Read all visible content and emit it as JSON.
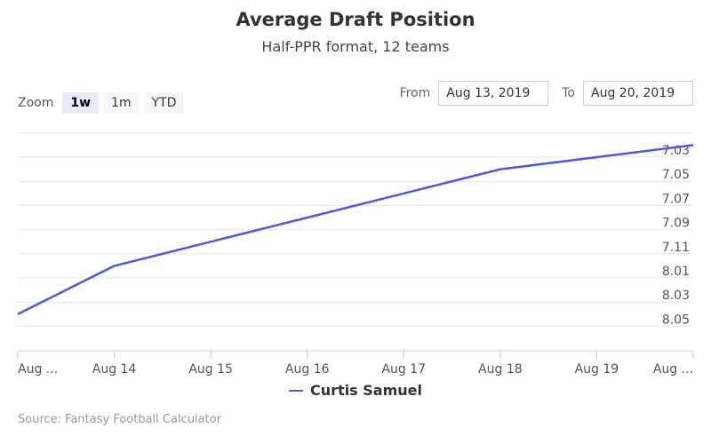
{
  "header": {
    "title": "Average Draft Position",
    "subtitle": "Half-PPR format, 12 teams"
  },
  "zoom": {
    "label": "Zoom",
    "buttons": [
      {
        "label": "1w",
        "active": true
      },
      {
        "label": "1m",
        "active": false
      },
      {
        "label": "YTD",
        "active": false
      }
    ]
  },
  "range": {
    "from_label": "From",
    "from_value": "Aug 13, 2019",
    "to_label": "To",
    "to_value": "Aug 20, 2019"
  },
  "colors": {
    "series": "#4d5ae0",
    "grid": "#e6e6e6"
  },
  "chart_data": {
    "type": "line",
    "x": [
      "Aug 13",
      "Aug 14",
      "Aug 15",
      "Aug 16",
      "Aug 17",
      "Aug 18",
      "Aug 19",
      "Aug 20"
    ],
    "x_tick_labels": [
      "Aug ...",
      "Aug 14",
      "Aug 15",
      "Aug 16",
      "Aug 17",
      "Aug 18",
      "Aug 19",
      "Aug ..."
    ],
    "y_ticks": [
      "7.03",
      "7.05",
      "7.07",
      "7.09",
      "7.11",
      "8.01",
      "8.03",
      "8.05"
    ],
    "y_axis": "reversed, picks top-to-bottom",
    "series": [
      {
        "name": "Curtis Samuel",
        "values": [
          8.04,
          8.0,
          7.1,
          7.08,
          7.06,
          7.04,
          7.03,
          7.02
        ]
      }
    ],
    "legend": "bottom-center",
    "grid": true
  },
  "credits": "Source: Fantasy Football Calculator"
}
